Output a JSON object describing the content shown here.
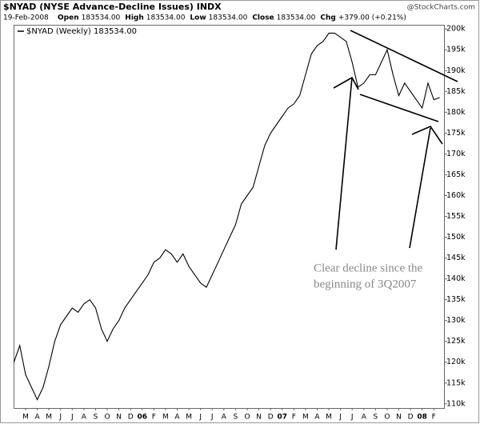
{
  "chart_data": {
    "type": "line",
    "title": "$NYAD (NYSE Advance-Decline Issues) INDX",
    "watermark": "@StockCharts.com",
    "date": "19-Feb-2008",
    "quote": [
      "Open",
      "183534.00",
      "High",
      "183534.00",
      "Low",
      "183534.00",
      "Close",
      "183534.00",
      "Chg",
      "+379.00 (+0.21%)"
    ],
    "annotation": [
      "Clear decline since the",
      "beginning of 3Q2007"
    ],
    "categories": [
      null,
      null,
      "M",
      null,
      "A",
      null,
      "M",
      null,
      "J",
      null,
      "J",
      null,
      "A",
      null,
      "S",
      null,
      "O",
      null,
      "N",
      null,
      "D",
      null,
      "06",
      null,
      "F",
      null,
      "M",
      null,
      "A",
      null,
      "M",
      null,
      "J",
      null,
      "J",
      null,
      "A",
      null,
      "S",
      null,
      "O",
      null,
      "N",
      null,
      "D",
      null,
      "07",
      null,
      "F",
      null,
      "M",
      null,
      "A",
      null,
      "M",
      null,
      "J",
      null,
      "J",
      null,
      "A",
      null,
      "S",
      null,
      "O",
      null,
      "N",
      null,
      "D",
      null,
      "08",
      null,
      "F",
      null
    ],
    "series": [
      {
        "name": "$NYAD (Weekly) 183534.00",
        "color": "#000000",
        "values": [
          120000,
          124000,
          117000,
          114000,
          111000,
          114000,
          119000,
          125000,
          129000,
          131000,
          133000,
          132000,
          134000,
          135000,
          133000,
          128000,
          125000,
          128000,
          130000,
          133000,
          135000,
          137000,
          139000,
          141000,
          144000,
          145000,
          147000,
          146000,
          144000,
          146000,
          143000,
          141000,
          139000,
          138000,
          141000,
          144000,
          147000,
          150000,
          153000,
          158000,
          160000,
          162000,
          167000,
          172000,
          175000,
          177000,
          179000,
          181000,
          182000,
          184000,
          189000,
          194000,
          196000,
          197000,
          199000,
          199000,
          198000,
          197000,
          192000,
          186000,
          187000,
          189000,
          189000,
          192000,
          195000,
          189000,
          184000,
          187000,
          185000,
          183000,
          181000,
          187000,
          183000,
          183534
        ]
      }
    ],
    "ylim": [
      109000,
      201000
    ],
    "yticks": [
      {
        "value": 110000,
        "label": "110k"
      },
      {
        "value": 115000,
        "label": "115k"
      },
      {
        "value": 120000,
        "label": "120k"
      },
      {
        "value": 125000,
        "label": "125k"
      },
      {
        "value": 130000,
        "label": "130k"
      },
      {
        "value": 135000,
        "label": "135k"
      },
      {
        "value": 140000,
        "label": "140k"
      },
      {
        "value": 145000,
        "label": "145k"
      },
      {
        "value": 150000,
        "label": "150k"
      },
      {
        "value": 155000,
        "label": "155k"
      },
      {
        "value": 160000,
        "label": "160k"
      },
      {
        "value": 165000,
        "label": "165k"
      },
      {
        "value": 170000,
        "label": "170k"
      },
      {
        "value": 175000,
        "label": "175k"
      },
      {
        "value": 180000,
        "label": "180k"
      },
      {
        "value": 185000,
        "label": "185k"
      },
      {
        "value": 190000,
        "label": "190k"
      },
      {
        "value": 195000,
        "label": "195k"
      },
      {
        "value": 200000,
        "label": "200k"
      }
    ],
    "grid": false
  }
}
